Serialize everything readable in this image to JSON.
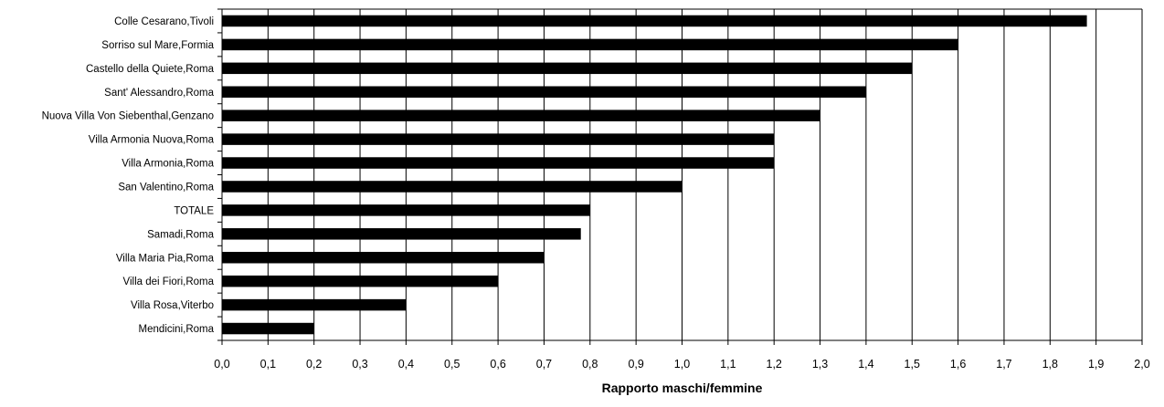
{
  "chart_data": {
    "type": "bar",
    "orientation": "horizontal",
    "title": "",
    "xlabel": "Rapporto maschi/femmine",
    "ylabel": "",
    "xlim": [
      0,
      2.0
    ],
    "xtick_step": 0.1,
    "xtick_labels": [
      "0,0",
      "0,1",
      "0,2",
      "0,3",
      "0,4",
      "0,5",
      "0,6",
      "0,7",
      "0,8",
      "0,9",
      "1,0",
      "1,1",
      "1,2",
      "1,3",
      "1,4",
      "1,5",
      "1,6",
      "1,7",
      "1,8",
      "1,9",
      "2,0"
    ],
    "grid": "vertical",
    "legend": "none",
    "bar_color": "#000000",
    "categories": [
      "Colle Cesarano,Tivoli",
      "Sorriso sul Mare,Formia",
      "Castello della Quiete,Roma",
      "Sant' Alessandro,Roma",
      "Nuova Villa Von Siebenthal,Genzano",
      "Villa Armonia Nuova,Roma",
      "Villa Armonia,Roma",
      "San Valentino,Roma",
      "TOTALE",
      "Samadi,Roma",
      "Villa Maria Pia,Roma",
      "Villa dei Fiori,Roma",
      "Villa Rosa,Viterbo",
      "Mendicini,Roma"
    ],
    "values": [
      1.88,
      1.6,
      1.5,
      1.4,
      1.3,
      1.2,
      1.2,
      1.0,
      0.8,
      0.78,
      0.7,
      0.6,
      0.4,
      0.2
    ]
  }
}
